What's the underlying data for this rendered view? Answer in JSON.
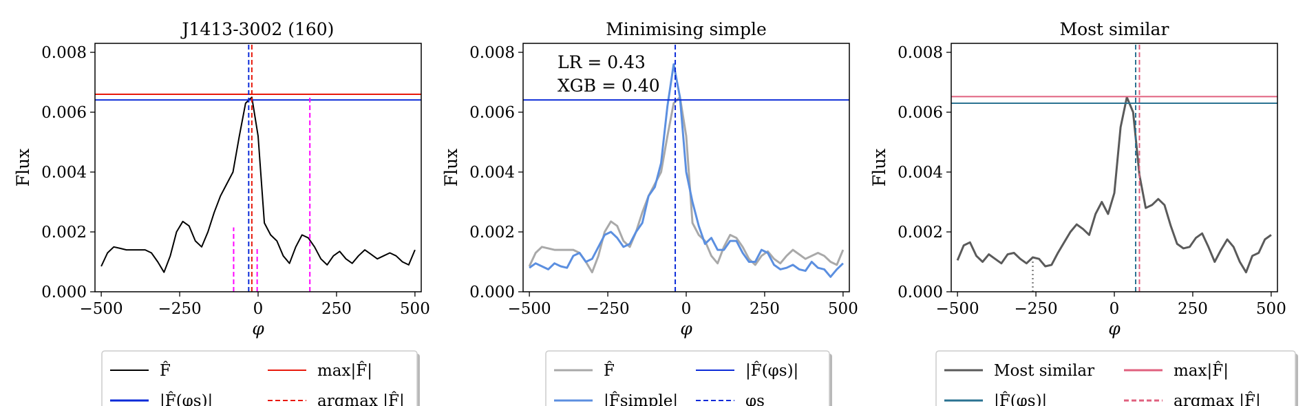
{
  "panels": [
    {
      "title": "J1413-3002 (160)",
      "ylabel": "Flux",
      "xlabel": "φ",
      "xticks": [
        -500,
        -250,
        0,
        250,
        500
      ],
      "xtick_labels": [
        "−500",
        "−250",
        "0",
        "250",
        "500"
      ],
      "yticks": [
        0.0,
        0.002,
        0.004,
        0.006,
        0.008
      ],
      "ytick_labels": [
        "0.000",
        "0.002",
        "0.004",
        "0.006",
        "0.008"
      ],
      "legend": [
        {
          "label": "F̂",
          "color": "#000000",
          "dash": "solid",
          "width": 2
        },
        {
          "label": "max|F̂|",
          "color": "#e8180a",
          "dash": "solid",
          "width": 2
        },
        {
          "label": "|F̂(φs)|",
          "color": "#0a2ad8",
          "dash": "solid",
          "width": 3
        },
        {
          "label": "argmax |F̂|",
          "color": "#e8180a",
          "dash": "dashed",
          "width": 2
        }
      ]
    },
    {
      "title": "Minimising simple",
      "ylabel": "Flux",
      "xlabel": "φ",
      "xticks": [
        -500,
        -250,
        0,
        250,
        500
      ],
      "xtick_labels": [
        "−500",
        "−250",
        "0",
        "250",
        "500"
      ],
      "yticks": [
        0.0,
        0.002,
        0.004,
        0.006,
        0.008
      ],
      "ytick_labels": [
        "0.000",
        "0.002",
        "0.004",
        "0.006",
        "0.008"
      ],
      "annotations": [
        "LR = 0.43",
        "XGB = 0.40"
      ],
      "legend": [
        {
          "label": "F̂",
          "color": "#a9a9a9",
          "dash": "solid",
          "width": 3
        },
        {
          "label": "|F̂(φs)|",
          "color": "#0a2ad8",
          "dash": "solid",
          "width": 2
        },
        {
          "label": "|F̂simple|",
          "color": "#5b8fe0",
          "dash": "solid",
          "width": 3
        },
        {
          "label": "φs",
          "color": "#0a2ad8",
          "dash": "dashed",
          "width": 2
        }
      ]
    },
    {
      "title": "Most similar",
      "ylabel": "Flux",
      "xlabel": "φ",
      "xticks": [
        -500,
        -250,
        0,
        250,
        500
      ],
      "xtick_labels": [
        "−500",
        "−250",
        "0",
        "250",
        "500"
      ],
      "yticks": [
        0.0,
        0.002,
        0.004,
        0.006,
        0.008
      ],
      "ytick_labels": [
        "0.000",
        "0.002",
        "0.004",
        "0.006",
        "0.008"
      ],
      "legend": [
        {
          "label": "Most similar",
          "color": "#5a5a5a",
          "dash": "solid",
          "width": 3
        },
        {
          "label": "max|F̂|",
          "color": "#e0607e",
          "dash": "solid",
          "width": 3
        },
        {
          "label": "|F̂(φs)|",
          "color": "#2a7291",
          "dash": "solid",
          "width": 3
        },
        {
          "label": "argmax |F̂|",
          "color": "#e0607e",
          "dash": "dashed",
          "width": 3
        }
      ]
    }
  ],
  "colors": {
    "black": "#000000",
    "red": "#e8180a",
    "blue": "#0a2ad8",
    "magenta": "#ff00ff",
    "grey": "#a9a9a9",
    "lightblue": "#5b8fe0",
    "darkgrey": "#5a5a5a",
    "pink": "#e0607e",
    "teal": "#2a7291",
    "dotted": "#808080"
  },
  "chart_data": [
    {
      "type": "line",
      "title": "J1413-3002 (160)",
      "xlabel": "φ",
      "ylabel": "Flux",
      "xlim": [
        -520,
        520
      ],
      "ylim": [
        0.0,
        0.0083
      ],
      "series": [
        {
          "name": "F̂",
          "color": "#000000",
          "x": [
            -500,
            -480,
            -460,
            -440,
            -420,
            -400,
            -380,
            -360,
            -340,
            -320,
            -300,
            -280,
            -260,
            -240,
            -220,
            -200,
            -180,
            -160,
            -140,
            -120,
            -100,
            -80,
            -60,
            -40,
            -20,
            0,
            20,
            40,
            60,
            80,
            100,
            120,
            140,
            160,
            180,
            200,
            220,
            240,
            260,
            280,
            300,
            320,
            340,
            360,
            380,
            400,
            420,
            440,
            460,
            480,
            500
          ],
          "y": [
            0.00085,
            0.0013,
            0.0015,
            0.00145,
            0.0014,
            0.0014,
            0.0014,
            0.0014,
            0.0013,
            0.001,
            0.00065,
            0.0012,
            0.002,
            0.00235,
            0.0022,
            0.0017,
            0.0015,
            0.002,
            0.00265,
            0.0032,
            0.0036,
            0.004,
            0.0052,
            0.0063,
            0.0065,
            0.0052,
            0.0023,
            0.0019,
            0.0017,
            0.0012,
            0.00095,
            0.0015,
            0.0019,
            0.0018,
            0.0015,
            0.0011,
            0.0009,
            0.0012,
            0.00135,
            0.0011,
            0.00095,
            0.0012,
            0.0014,
            0.00125,
            0.0011,
            0.0012,
            0.0013,
            0.0012,
            0.001,
            0.0009,
            0.0014
          ]
        }
      ],
      "hlines": [
        {
          "name": "max|F̂|",
          "y": 0.0066,
          "color": "#e8180a"
        },
        {
          "name": "|F̂(φs)|",
          "y": 0.00641,
          "color": "#0a2ad8"
        }
      ],
      "vlines": [
        {
          "name": "argmax |F̂|",
          "x": -20,
          "y_top": 0.0083,
          "color": "#e8180a",
          "dash": "dashed"
        },
        {
          "name": "φs",
          "x": -30,
          "y_top": 0.0083,
          "color": "#0a2ad8",
          "dash": "dashed"
        },
        {
          "name": "marker",
          "x": -78,
          "y_top": 0.00215,
          "color": "#ff00ff",
          "dash": "dashed"
        },
        {
          "name": "marker",
          "x": -3,
          "y_top": 0.0015,
          "color": "#ff00ff",
          "dash": "dashed"
        },
        {
          "name": "marker",
          "x": 165,
          "y_top": 0.00655,
          "color": "#ff00ff",
          "dash": "dashed"
        }
      ]
    },
    {
      "type": "line",
      "title": "Minimising simple",
      "xlabel": "φ",
      "ylabel": "Flux",
      "xlim": [
        -520,
        520
      ],
      "ylim": [
        0.0,
        0.0083
      ],
      "series": [
        {
          "name": "F̂",
          "color": "#a9a9a9",
          "x": [
            -500,
            -480,
            -460,
            -440,
            -420,
            -400,
            -380,
            -360,
            -340,
            -320,
            -300,
            -280,
            -260,
            -240,
            -220,
            -200,
            -180,
            -160,
            -140,
            -120,
            -100,
            -80,
            -60,
            -40,
            -20,
            0,
            20,
            40,
            60,
            80,
            100,
            120,
            140,
            160,
            180,
            200,
            220,
            240,
            260,
            280,
            300,
            320,
            340,
            360,
            380,
            400,
            420,
            440,
            460,
            480,
            500
          ],
          "y": [
            0.00085,
            0.0013,
            0.0015,
            0.00145,
            0.0014,
            0.0014,
            0.0014,
            0.0014,
            0.0013,
            0.001,
            0.00065,
            0.0012,
            0.002,
            0.00235,
            0.0022,
            0.0017,
            0.0015,
            0.002,
            0.00265,
            0.0032,
            0.0036,
            0.004,
            0.0052,
            0.0063,
            0.0065,
            0.0052,
            0.0023,
            0.0019,
            0.0017,
            0.0012,
            0.00095,
            0.0015,
            0.0019,
            0.0018,
            0.0015,
            0.0011,
            0.0009,
            0.0012,
            0.00135,
            0.0011,
            0.00095,
            0.0012,
            0.0014,
            0.00125,
            0.0011,
            0.0012,
            0.0013,
            0.0012,
            0.001,
            0.0009,
            0.0014
          ]
        },
        {
          "name": "|F̂simple|",
          "color": "#5b8fe0",
          "x": [
            -500,
            -480,
            -460,
            -440,
            -420,
            -400,
            -380,
            -360,
            -340,
            -320,
            -300,
            -280,
            -260,
            -240,
            -220,
            -200,
            -180,
            -160,
            -140,
            -120,
            -100,
            -80,
            -60,
            -40,
            -20,
            0,
            20,
            40,
            60,
            80,
            100,
            120,
            140,
            160,
            180,
            200,
            220,
            240,
            260,
            280,
            300,
            320,
            340,
            360,
            380,
            400,
            420,
            440,
            460,
            480,
            500
          ],
          "y": [
            0.0008,
            0.00095,
            0.00085,
            0.00075,
            0.00095,
            0.00085,
            0.0008,
            0.0012,
            0.0013,
            0.001,
            0.0011,
            0.0015,
            0.0019,
            0.002,
            0.0018,
            0.0015,
            0.0016,
            0.002,
            0.0023,
            0.0032,
            0.0035,
            0.0043,
            0.0062,
            0.0076,
            0.0065,
            0.004,
            0.003,
            0.0022,
            0.0016,
            0.0018,
            0.0014,
            0.0014,
            0.0017,
            0.0017,
            0.0013,
            0.001,
            0.001,
            0.0014,
            0.0013,
            0.0009,
            0.00075,
            0.0008,
            0.0009,
            0.00075,
            0.0007,
            0.001,
            0.0008,
            0.00075,
            0.0005,
            0.00075,
            0.00095
          ]
        }
      ],
      "hlines": [
        {
          "name": "|F̂(φs)|",
          "y": 0.00641,
          "color": "#0a2ad8"
        }
      ],
      "vlines": [
        {
          "name": "φs",
          "x": -35,
          "y_top": 0.0083,
          "color": "#0a2ad8",
          "dash": "dashed"
        }
      ]
    },
    {
      "type": "line",
      "title": "Most similar",
      "xlabel": "φ",
      "ylabel": "Flux",
      "xlim": [
        -520,
        520
      ],
      "ylim": [
        0.0,
        0.0083
      ],
      "series": [
        {
          "name": "Most similar",
          "color": "#5a5a5a",
          "x": [
            -500,
            -480,
            -460,
            -440,
            -420,
            -400,
            -380,
            -360,
            -340,
            -320,
            -300,
            -280,
            -260,
            -240,
            -220,
            -200,
            -180,
            -160,
            -140,
            -120,
            -100,
            -80,
            -60,
            -40,
            -20,
            0,
            20,
            40,
            60,
            80,
            100,
            120,
            140,
            160,
            180,
            200,
            220,
            240,
            260,
            280,
            300,
            320,
            340,
            360,
            380,
            400,
            420,
            440,
            460,
            480,
            500
          ],
          "y": [
            0.00105,
            0.00155,
            0.00165,
            0.0012,
            0.001,
            0.00125,
            0.0011,
            0.00095,
            0.00125,
            0.0013,
            0.0011,
            0.00095,
            0.00115,
            0.0011,
            0.00085,
            0.0009,
            0.0013,
            0.00165,
            0.002,
            0.00225,
            0.0021,
            0.0019,
            0.0026,
            0.003,
            0.0026,
            0.0033,
            0.0055,
            0.0065,
            0.006,
            0.0039,
            0.0028,
            0.0029,
            0.0031,
            0.0029,
            0.0022,
            0.0016,
            0.00145,
            0.0015,
            0.0018,
            0.00195,
            0.0015,
            0.001,
            0.0014,
            0.00175,
            0.0015,
            0.001,
            0.00065,
            0.0012,
            0.0013,
            0.00175,
            0.0019
          ]
        }
      ],
      "hlines": [
        {
          "name": "max|F̂|",
          "y": 0.00652,
          "color": "#e0607e"
        },
        {
          "name": "|F̂(φs)|",
          "y": 0.0063,
          "color": "#2a7291"
        }
      ],
      "vlines": [
        {
          "name": "φs",
          "x": 68,
          "y_top": 0.0083,
          "color": "#2a7291",
          "dash": "dashed"
        },
        {
          "name": "argmax |F̂|",
          "x": 80,
          "y_top": 0.0083,
          "color": "#e0607e",
          "dash": "dashed"
        },
        {
          "name": "marker",
          "x": -260,
          "y_top": 0.00105,
          "color": "#808080",
          "dash": "dotted"
        }
      ]
    }
  ]
}
